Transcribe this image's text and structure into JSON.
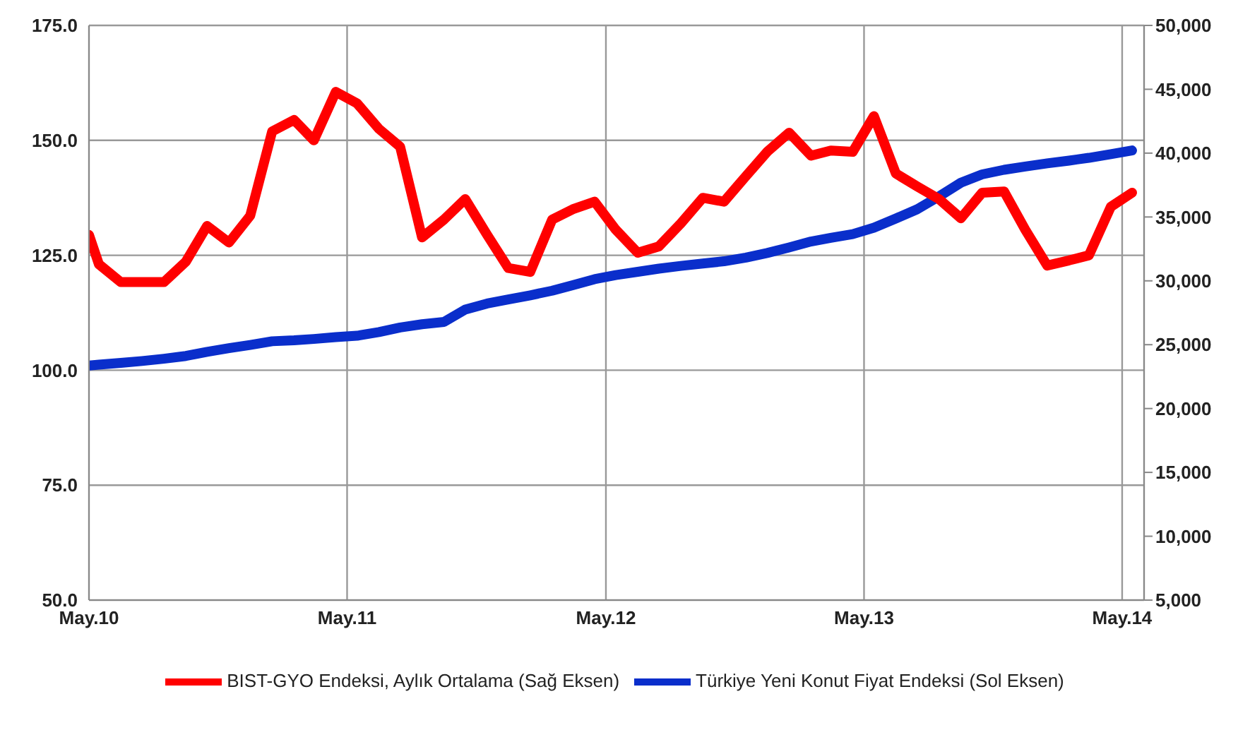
{
  "chart_data": {
    "type": "line",
    "x": [
      "2010-05-01",
      "2010-05-15",
      "2010-06-15",
      "2010-07-15",
      "2010-08-15",
      "2010-09-15",
      "2010-10-15",
      "2010-11-15",
      "2010-12-15",
      "2011-01-15",
      "2011-02-15",
      "2011-03-15",
      "2011-04-15",
      "2011-05-15",
      "2011-06-15",
      "2011-07-15",
      "2011-08-15",
      "2011-09-15",
      "2011-10-15",
      "2011-11-15",
      "2011-12-15",
      "2012-01-15",
      "2012-02-15",
      "2012-03-15",
      "2012-04-15",
      "2012-05-15",
      "2012-06-15",
      "2012-07-15",
      "2012-08-15",
      "2012-09-15",
      "2012-10-15",
      "2012-11-15",
      "2012-12-15",
      "2013-01-15",
      "2013-02-15",
      "2013-03-15",
      "2013-04-15",
      "2013-05-15",
      "2013-06-15",
      "2013-07-15",
      "2013-08-15",
      "2013-09-15",
      "2013-10-15",
      "2013-11-15",
      "2013-12-15",
      "2014-01-15",
      "2014-02-15",
      "2014-03-15",
      "2014-04-15",
      "2014-05-15"
    ],
    "series": [
      {
        "name": "Türkiye Yeni Konut Fiyat Endeksi (Sol Eksen)",
        "color": "#0a2ecb",
        "values": [
          101,
          101.2,
          101.6,
          102,
          102.5,
          103.1,
          104,
          104.8,
          105.5,
          106.3,
          106.5,
          106.8,
          107.2,
          107.5,
          108.3,
          109.3,
          110,
          110.5,
          113.2,
          114.5,
          115.4,
          116.3,
          117.3,
          118.5,
          119.8,
          120.7,
          121.4,
          122.1,
          122.7,
          123.2,
          123.7,
          124.5,
          125.5,
          126.7,
          128,
          128.8,
          129.6,
          131,
          133,
          135,
          137.8,
          140.8,
          142.6,
          143.6,
          144.3,
          145,
          145.6,
          146.2,
          147,
          147.8
        ]
      },
      {
        "name": "BIST-GYO Endeksi, Aylık Ortalama (Sağ Eksen)",
        "color": "#ff0000",
        "axis": "y2",
        "values": [
          33600,
          31300,
          29900,
          29900,
          29900,
          31500,
          34300,
          33000,
          35100,
          41700,
          42600,
          41000,
          44800,
          43900,
          41900,
          40500,
          33400,
          34800,
          36400,
          33600,
          31000,
          30700,
          34800,
          35600,
          36200,
          34000,
          32200,
          32700,
          34500,
          36500,
          36200,
          38200,
          40100,
          41600,
          39800,
          40200,
          40100,
          42900,
          38400,
          37400,
          36400,
          34900,
          36900,
          37000,
          34000,
          31200,
          31600,
          32000,
          35800,
          36900
        ]
      }
    ],
    "xlim": [
      "2010-05-01",
      "2014-06-01"
    ],
    "xticks": [
      {
        "value": "2010-05-01",
        "label": "May.10"
      },
      {
        "value": "2011-05-01",
        "label": "May.11"
      },
      {
        "value": "2012-05-01",
        "label": "May.12"
      },
      {
        "value": "2013-05-01",
        "label": "May.13"
      },
      {
        "value": "2014-05-01",
        "label": "May.14"
      }
    ],
    "ylim": [
      50,
      175
    ],
    "yticks": [
      {
        "value": 50,
        "label": "50.0"
      },
      {
        "value": 75,
        "label": "75.0"
      },
      {
        "value": 100,
        "label": "100.0"
      },
      {
        "value": 125,
        "label": "125.0"
      },
      {
        "value": 150,
        "label": "150.0"
      },
      {
        "value": 175,
        "label": "175.0"
      }
    ],
    "y2lim": [
      5000,
      50000
    ],
    "y2ticks": [
      {
        "value": 5000,
        "label": "5,000"
      },
      {
        "value": 10000,
        "label": "10,000"
      },
      {
        "value": 15000,
        "label": "15,000"
      },
      {
        "value": 20000,
        "label": "20,000"
      },
      {
        "value": 25000,
        "label": "25,000"
      },
      {
        "value": 30000,
        "label": "30,000"
      },
      {
        "value": 35000,
        "label": "35,000"
      },
      {
        "value": 40000,
        "label": "40,000"
      },
      {
        "value": 45000,
        "label": "45,000"
      },
      {
        "value": 50000,
        "label": "50,000"
      }
    ],
    "grid": true,
    "legend": "bottom",
    "marker": "none",
    "line_style": "solid"
  }
}
